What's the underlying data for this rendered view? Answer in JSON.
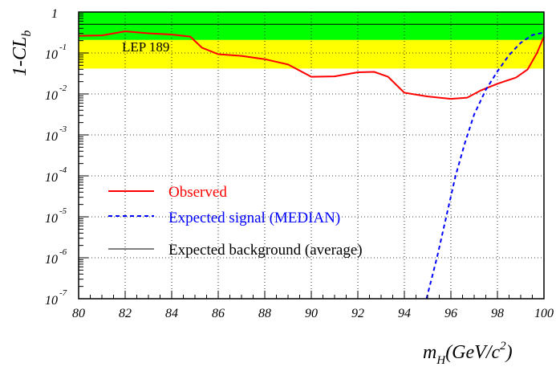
{
  "chart_data": {
    "type": "line",
    "ylabel": {
      "main": "1-CL",
      "sub": "b"
    },
    "xlabel": {
      "main": "m",
      "sub": "H",
      "unit_open": "(GeV/c",
      "unit_sup": "2",
      "unit_close": ")"
    },
    "annotation": "LEP 189",
    "xlim": [
      80,
      100
    ],
    "ylim_log10": [
      -7,
      0
    ],
    "log_y": true,
    "grid": true,
    "x_ticks": [
      {
        "value": 80,
        "label": "80"
      },
      {
        "value": 82,
        "label": "82"
      },
      {
        "value": 84,
        "label": "84"
      },
      {
        "value": 86,
        "label": "86"
      },
      {
        "value": 88,
        "label": "88"
      },
      {
        "value": 90,
        "label": "90"
      },
      {
        "value": 92,
        "label": "92"
      },
      {
        "value": 94,
        "label": "94"
      },
      {
        "value": 96,
        "label": "96"
      },
      {
        "value": 98,
        "label": "98"
      },
      {
        "value": 100,
        "label": "100"
      }
    ],
    "y_ticks": [
      {
        "exp": 0,
        "base": "1",
        "sup": ""
      },
      {
        "exp": -1,
        "base": "10",
        "sup": "-1"
      },
      {
        "exp": -2,
        "base": "10",
        "sup": "-2"
      },
      {
        "exp": -3,
        "base": "10",
        "sup": "-3"
      },
      {
        "exp": -4,
        "base": "10",
        "sup": "-4"
      },
      {
        "exp": -5,
        "base": "10",
        "sup": "-5"
      },
      {
        "exp": -6,
        "base": "10",
        "sup": "-6"
      },
      {
        "exp": -7,
        "base": "10",
        "sup": "-7"
      }
    ],
    "bands": [
      {
        "name": "2-sigma",
        "color": "#ffff00",
        "ylog_range": [
          -1.38,
          0
        ]
      },
      {
        "name": "1-sigma",
        "color": "#00ff00",
        "ylog_range": [
          -0.68,
          0
        ]
      }
    ],
    "series": [
      {
        "name": "Observed",
        "color": "#ff0000",
        "style": "solid",
        "x": [
          80,
          81,
          82,
          83,
          84,
          84.8,
          85.3,
          86,
          87,
          88,
          89,
          90,
          91,
          92,
          92.7,
          93.3,
          94,
          95,
          96,
          96.7,
          97.3,
          98,
          98.8,
          99.3,
          99.7,
          100
        ],
        "ylog": [
          -0.58,
          -0.57,
          -0.47,
          -0.52,
          -0.55,
          -0.6,
          -0.87,
          -1.03,
          -1.07,
          -1.15,
          -1.28,
          -1.58,
          -1.57,
          -1.47,
          -1.46,
          -1.58,
          -1.97,
          -2.06,
          -2.12,
          -2.09,
          -1.91,
          -1.75,
          -1.6,
          -1.4,
          -1.0,
          -0.6
        ]
      },
      {
        "name": "Expected signal (MEDIAN)",
        "color": "#0000ff",
        "style": "dashed",
        "x": [
          94.95,
          95.4,
          95.8,
          96.2,
          96.6,
          97.0,
          97.5,
          98.0,
          98.5,
          99.0,
          99.5,
          100
        ],
        "ylog": [
          -7.0,
          -6.0,
          -5.0,
          -4.0,
          -3.2,
          -2.5,
          -1.9,
          -1.45,
          -1.05,
          -0.75,
          -0.56,
          -0.5
        ]
      },
      {
        "name": "Expected background (average)",
        "color": "#000000",
        "style": "solid",
        "x": [
          80,
          100
        ],
        "ylog": [
          -0.3,
          -0.3
        ]
      }
    ],
    "legend": {
      "placement": "bottom-left",
      "observed_initial": "O",
      "observed_rest": "bserved"
    }
  }
}
